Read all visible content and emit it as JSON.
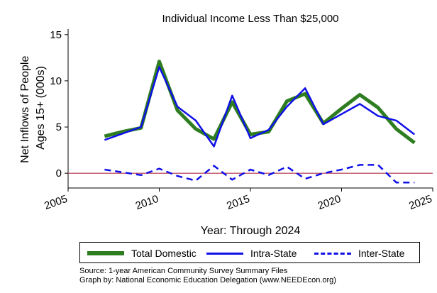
{
  "chart_data": {
    "type": "line",
    "title": "Individual Income Less Than $25,000",
    "xlabel": "Year: Through 2024",
    "ylabel": "Net Inflows of People\nAges 15+ (000s)",
    "xlim": [
      2005,
      2025
    ],
    "ylim": [
      -1.6,
      15.6
    ],
    "x_ticks": [
      "2005",
      "2010",
      "2015",
      "2020",
      "2025"
    ],
    "y_ticks": [
      "0",
      "5",
      "10",
      "15"
    ],
    "reference_line": {
      "y": 0,
      "color": "#b22f4a"
    },
    "grid": false,
    "legend_position": "bottom",
    "x": [
      2007,
      2008,
      2009,
      2010,
      2011,
      2012,
      2013,
      2014,
      2015,
      2016,
      2017,
      2018,
      2019,
      2020,
      2021,
      2022,
      2023,
      2024
    ],
    "series": [
      {
        "name": "Total Domestic",
        "color": "#2e7d21",
        "style": "solid-thick",
        "values": [
          4.0,
          4.5,
          4.9,
          12.1,
          6.8,
          4.8,
          3.7,
          7.7,
          4.2,
          4.5,
          7.8,
          8.6,
          5.4,
          7.0,
          8.5,
          7.1,
          4.8,
          3.3
        ]
      },
      {
        "name": "Intra-State",
        "color": "#1010e8",
        "style": "solid",
        "values": [
          3.6,
          4.3,
          5.0,
          11.5,
          7.2,
          5.7,
          2.9,
          8.4,
          3.8,
          4.7,
          7.2,
          9.2,
          5.3,
          6.4,
          7.5,
          6.2,
          5.7,
          4.2
        ]
      },
      {
        "name": "Inter-State",
        "color": "#1010e8",
        "style": "dashed",
        "values": [
          0.4,
          0.1,
          -0.2,
          0.5,
          -0.3,
          -0.8,
          0.8,
          -0.7,
          0.4,
          -0.2,
          0.7,
          -0.6,
          0.0,
          0.4,
          0.9,
          0.9,
          -1.0,
          -1.0
        ]
      }
    ]
  },
  "source_line": "Source: 1-year American Community Survey Summary Files",
  "credit_line": "Graph by: National Economic Education Delegation (www.NEEDEcon.org)"
}
